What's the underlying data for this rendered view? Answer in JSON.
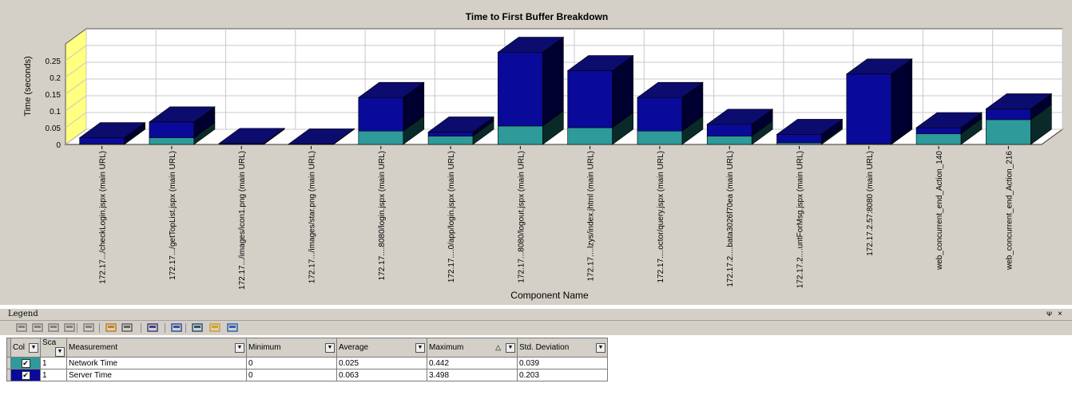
{
  "chart_data": {
    "type": "bar",
    "title": "Time to First Buffer Breakdown",
    "xlabel": "Component Name",
    "ylabel": "Time (seconds)",
    "ylim": [
      0,
      0.3
    ],
    "yticks": [
      "0",
      "0.05",
      "0.1",
      "0.15",
      "0.2",
      "0.25"
    ],
    "stacked": true,
    "grid": true,
    "categories": [
      "172.17.../checkLogin.jspx (main URL)",
      "172.17.../getTopList.jspx (main URL)",
      "172.17.../images/icon1.png (main URL)",
      "172.17.../images/star.png (main URL)",
      "172.17....8080/login.jspx (main URL)",
      "172.17....0/app/login.jspx (main URL)",
      "172.17...8080/logout.jspx (main URL)",
      "172.17....lzys/index.jhtml (main URL)",
      "172.17....octor/query.jspx (main URL)",
      "172.17.2....bata3026f70ea (main URL)",
      "172.17.2....untForMsg.jspx (main URL)",
      "172.17.2.57:8080 (main URL)",
      "web_concurrent_end_Action_140",
      "web_concurrent_end_Action_216"
    ],
    "series": [
      {
        "name": "Network Time",
        "color": "#2e9a9a",
        "values": [
          0.002,
          0.02,
          0.001,
          0.0005,
          0.04,
          0.025,
          0.055,
          0.05,
          0.04,
          0.025,
          0.005,
          0.002,
          0.032,
          0.074
        ]
      },
      {
        "name": "Server Time",
        "color": "#0a0a9a",
        "values": [
          0.018,
          0.047,
          0.002,
          0.001,
          0.1,
          0.012,
          0.22,
          0.17,
          0.1,
          0.035,
          0.025,
          0.208,
          0.018,
          0.032
        ]
      }
    ]
  },
  "legend": {
    "title": "Legend",
    "pin": "ᴪ",
    "close": "×",
    "headers": {
      "col": "Col",
      "scale": "Sca",
      "measurement": "Measurement",
      "minimum": "Minimum",
      "average": "Average",
      "maximum": "Maximum",
      "std_dev": "Std. Deviation"
    },
    "rows": [
      {
        "color": "#2e9a9a",
        "checked": "✔",
        "scale": "1",
        "measurement": "Network Time",
        "minimum": "0",
        "average": "0.025",
        "maximum": "0.442",
        "std_dev": "0.039"
      },
      {
        "color": "#0a0a9a",
        "checked": "✔",
        "scale": "1",
        "measurement": "Server Time",
        "minimum": "0",
        "average": "0.063",
        "maximum": "3.498",
        "std_dev": "0.203"
      }
    ],
    "sort_indicator": "△"
  },
  "toolbar_icons": [
    "filter-icon",
    "group-icon",
    "merge-icon",
    "link-icon",
    "funnel-icon",
    "export-icon",
    "configure-icon",
    "scale-icon",
    "columns-icon",
    "sort-icon",
    "highlight-icon",
    "grid-icon"
  ]
}
